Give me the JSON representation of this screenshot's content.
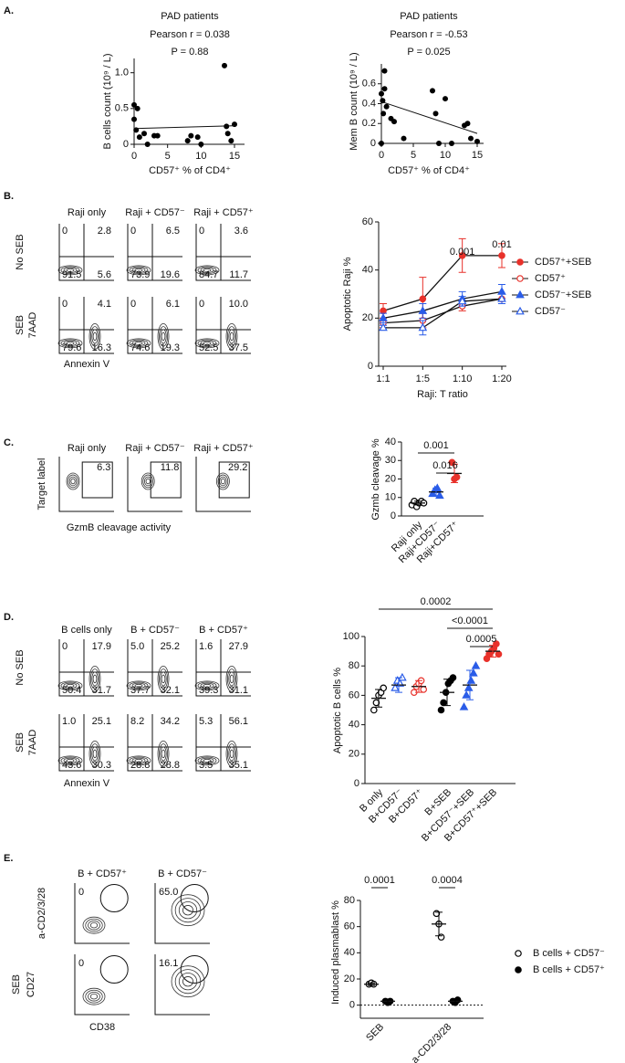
{
  "panel_labels": [
    "A.",
    "B.",
    "C.",
    "D.",
    "E."
  ],
  "chart_data": [
    {
      "type": "scatter",
      "title": "PAD patients",
      "annotations": [
        "Pearson r = 0.038",
        "P = 0.88"
      ],
      "x_label": "CD57⁺ % of CD4⁺",
      "y_label": "B cells count (10⁹ / L)",
      "x": [
        0,
        0.5,
        0.8,
        0,
        0.3,
        1.5,
        2,
        3,
        3.5,
        8,
        8.5,
        9.5,
        10,
        13.5,
        13.8,
        14,
        14.5,
        15
      ],
      "y": [
        0.55,
        0.5,
        0.1,
        0.35,
        0.2,
        0.15,
        0,
        0.12,
        0.12,
        0.05,
        0.12,
        0.1,
        0,
        1.1,
        0.25,
        0.15,
        0.05,
        0.28
      ],
      "xlim": [
        0,
        16.5
      ],
      "ylim": [
        0,
        1.2
      ],
      "xticks": [
        0,
        5,
        10,
        15
      ],
      "yticks": [
        0,
        0.5,
        {
          "value": 1,
          "label": "1.0"
        }
      ],
      "fit": {
        "x": [
          0,
          15
        ],
        "y": [
          0.22,
          0.26
        ]
      },
      "color": "#000000"
    },
    {
      "type": "scatter",
      "title": "PAD patients",
      "annotations": [
        "Pearson r = -0.53",
        "P = 0.025"
      ],
      "x_label": "CD57⁺ % of CD4⁺",
      "y_label": "Mem B count (10⁹ / L)",
      "x": [
        0,
        0.2,
        0.5,
        0.5,
        0.3,
        0.8,
        1.5,
        2,
        3.5,
        8,
        8.5,
        9,
        10,
        11,
        13,
        13.5,
        14,
        15,
        0
      ],
      "y": [
        0.5,
        0.43,
        0.55,
        0.73,
        0.3,
        0.37,
        0.25,
        0.22,
        0.05,
        0.53,
        0.3,
        0,
        0.45,
        0,
        0.18,
        0.2,
        0.05,
        0.02,
        0
      ],
      "xlim": [
        0,
        16
      ],
      "ylim": [
        0,
        0.8
      ],
      "xticks": [
        0,
        5,
        10,
        15
      ],
      "yticks": [
        0,
        0.2,
        0.4,
        0.6
      ],
      "fit": {
        "x": [
          0,
          15
        ],
        "y": [
          0.42,
          0.1
        ]
      },
      "color": "#000000"
    },
    {
      "type": "line",
      "y_label": "Apoptotic Raji %",
      "x_label": "Raji: T ratio",
      "categories": [
        "1:1",
        "1:5",
        "1:10",
        "1:20"
      ],
      "ylim": [
        0,
        60
      ],
      "yticks": [
        0,
        20,
        40,
        60
      ],
      "series": [
        {
          "name": "CD57⁺+SEB",
          "color": "#e8312a",
          "marker": "circle-filled",
          "values": [
            23,
            28,
            46,
            46
          ],
          "errors": [
            3,
            9,
            7,
            5
          ]
        },
        {
          "name": "CD57⁺",
          "color": "#e8312a",
          "marker": "circle-open",
          "values": [
            18,
            19,
            25,
            28
          ],
          "errors": [
            2,
            3,
            2,
            2
          ]
        },
        {
          "name": "CD57⁻+SEB",
          "color": "#2a5ce8",
          "marker": "triangle-filled",
          "values": [
            20,
            23,
            28,
            31
          ],
          "errors": [
            2,
            3,
            3,
            3
          ]
        },
        {
          "name": "CD57⁻",
          "color": "#2a5ce8",
          "marker": "triangle-open",
          "values": [
            16,
            16,
            27,
            28
          ],
          "errors": [
            1,
            3,
            2,
            2
          ]
        }
      ],
      "annotations": [
        "0.001",
        "0.01"
      ]
    },
    {
      "type": "strip",
      "y_label": "Gzmb cleavage %",
      "categories": [
        "Raji only",
        "Raji+CD57⁻",
        "Raji+CD57⁺"
      ],
      "ylim": [
        0,
        40
      ],
      "yticks": [
        0,
        10,
        20,
        30,
        40
      ],
      "series": [
        {
          "colors": [
            "#000000",
            "#2a5ce8",
            "#e8312a"
          ],
          "markers": [
            "circle-open",
            "triangle-filled",
            "circle-filled"
          ],
          "points": [
            [
              6,
              8,
              5,
              7,
              8,
              7
            ],
            [
              12,
              14,
              15,
              11
            ],
            [
              29,
              20,
              21
            ]
          ],
          "means": [
            7,
            13,
            23
          ],
          "sds": [
            1,
            2,
            5
          ]
        }
      ],
      "annotations": [
        "0.001",
        "0.016"
      ]
    },
    {
      "type": "strip",
      "y_label": "Apoptotic B cells %",
      "categories": [
        "B only",
        "B+CD57⁻",
        "B+CD57⁺",
        "B+SEB",
        "B+CD57⁻+SEB",
        "B+CD57⁺+SEB"
      ],
      "ylim": [
        0,
        100
      ],
      "yticks": [
        0,
        20,
        40,
        60,
        80,
        100
      ],
      "series": [
        {
          "colors": [
            "#000000",
            "#2a5ce8",
            "#e8312a",
            "#000000",
            "#2a5ce8",
            "#e8312a"
          ],
          "markers": [
            "circle-open",
            "triangle-open",
            "circle-open",
            "circle-filled",
            "triangle-filled",
            "circle-filled"
          ],
          "points": [
            [
              50,
              55,
              60,
              62,
              65
            ],
            [
              65,
              70,
              68,
              72
            ],
            [
              62,
              66,
              68,
              70,
              64
            ],
            [
              50,
              55,
              62,
              68,
              70,
              72
            ],
            [
              52,
              60,
              65,
              70,
              75,
              80
            ],
            [
              85,
              88,
              90,
              92,
              95,
              88
            ]
          ],
          "means": [
            58,
            67,
            66,
            62,
            67,
            90
          ],
          "sds": [
            6,
            5,
            4,
            9,
            10,
            4
          ]
        }
      ],
      "annotations": [
        "0.0002",
        "<0.0001",
        "0.0005"
      ]
    },
    {
      "type": "strip",
      "y_label": "Induced plasmablast %",
      "categories": [
        "SEB",
        "a-CD2/3/28"
      ],
      "ylim": [
        -10,
        80
      ],
      "yticks": [
        0,
        20,
        40,
        60,
        80
      ],
      "reference_line": 0,
      "series": [
        {
          "name": "B cells + CD57⁻",
          "color": "#000000",
          "marker": "circle-open",
          "points": [
            [
              16,
              17,
              16
            ],
            [
              70,
              62,
              52
            ]
          ],
          "means": [
            16,
            62
          ],
          "sds": [
            1,
            9
          ]
        },
        {
          "name": "B cells + CD57⁺",
          "color": "#000000",
          "marker": "circle-filled",
          "points": [
            [
              3,
              2,
              3
            ],
            [
              3,
              2,
              4
            ]
          ],
          "means": [
            3,
            3
          ],
          "sds": [
            1,
            1
          ]
        }
      ],
      "annotations": [
        "0.0001",
        "0.0004"
      ]
    }
  ],
  "flow": [
    {
      "columns": [
        "Raji only",
        "Raji + CD57⁻",
        "Raji + CD57⁺"
      ],
      "y_label": "7AAD",
      "x_label": "Annexin V",
      "rows": [
        {
          "label": "No SEB",
          "cells": [
            [
              "0",
              "2.8",
              "91.5",
              "5.6"
            ],
            [
              "0",
              "6.5",
              "73.9",
              "19.6"
            ],
            [
              "0",
              "3.6",
              "84.7",
              "11.7"
            ]
          ]
        },
        {
          "label": "SEB",
          "cells": [
            [
              "0",
              "4.1",
              "79.6",
              "16.3"
            ],
            [
              "0",
              "6.1",
              "74.6",
              "19.3"
            ],
            [
              "0",
              "10.0",
              "52.5",
              "37.5"
            ]
          ]
        }
      ]
    },
    {
      "columns": [
        "Raji only",
        "Raji + CD57⁻",
        "Raji + CD57⁺"
      ],
      "y_label": "Target label",
      "x_label": "GzmB cleavage activity",
      "rows": [
        {
          "cells": [
            [
              "6.3"
            ],
            [
              "11.8"
            ],
            [
              "29.2"
            ]
          ]
        }
      ]
    },
    {
      "columns": [
        "B cells only",
        "B + CD57⁻",
        "B + CD57⁺"
      ],
      "y_label": "7AAD",
      "x_label": "Annexin V",
      "rows": [
        {
          "label": "No SEB",
          "cells": [
            [
              "0",
              "17.9",
              "50.4",
              "31.7"
            ],
            [
              "5.0",
              "25.2",
              "37.7",
              "32.1"
            ],
            [
              "1.6",
              "27.9",
              "39.3",
              "31.1"
            ]
          ]
        },
        {
          "label": "SEB",
          "cells": [
            [
              "1.0",
              "25.1",
              "43.6",
              "30.3"
            ],
            [
              "8.2",
              "34.2",
              "28.8",
              "28.8"
            ],
            [
              "5.3",
              "56.1",
              "3.5",
              "35.1"
            ]
          ]
        }
      ]
    },
    {
      "columns": [
        "B + CD57⁺",
        "B + CD57⁻"
      ],
      "y_label": "CD27",
      "x_label": "CD38",
      "rows": [
        {
          "label": "a-CD2/3/28",
          "cells": [
            [
              "0"
            ],
            [
              "65.0"
            ]
          ]
        },
        {
          "label": "SEB",
          "cells": [
            [
              "0"
            ],
            [
              "16.1"
            ]
          ]
        }
      ]
    }
  ]
}
